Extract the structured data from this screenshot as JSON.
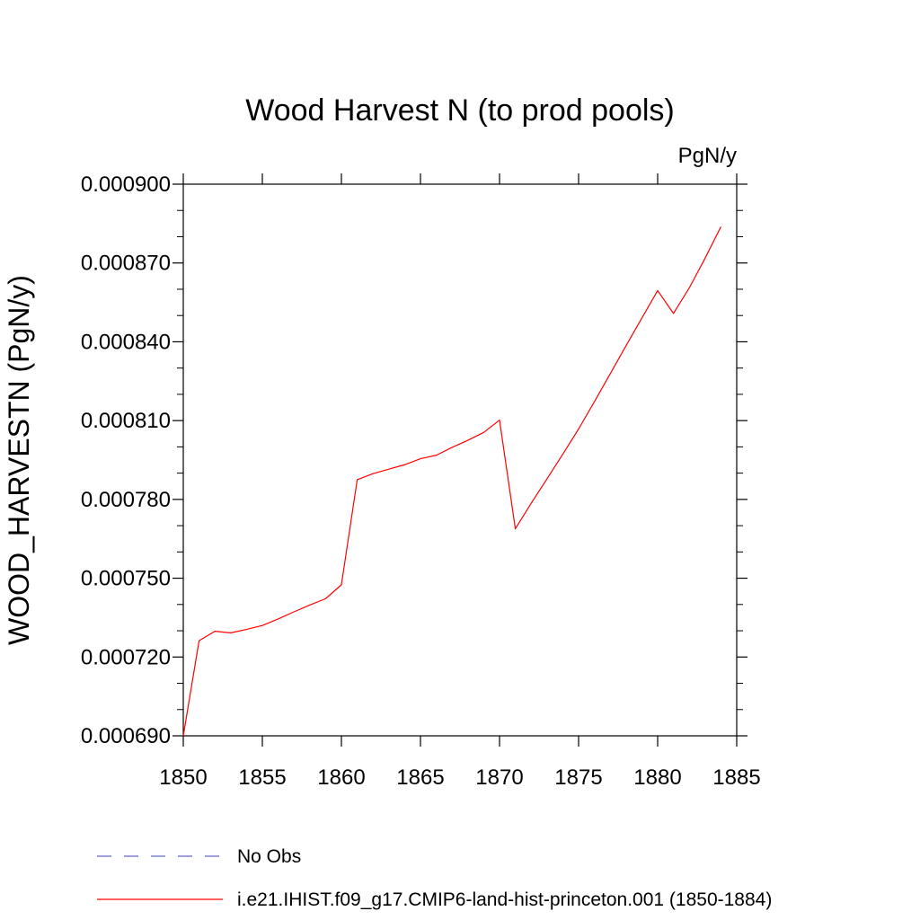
{
  "chart_data": {
    "type": "line",
    "title": "Wood Harvest N (to prod pools)",
    "units_label": "PgN/y",
    "ylabel": "WOOD_HARVESTN  (PgN/y)",
    "xlabel": "",
    "xlim": [
      1850,
      1885
    ],
    "ylim": [
      0.00069,
      0.0009
    ],
    "xticks": [
      "1850",
      "1855",
      "1860",
      "1865",
      "1870",
      "1875",
      "1880",
      "1885"
    ],
    "yticks": [
      "0.000690",
      "0.000720",
      "0.000750",
      "0.000780",
      "0.000810",
      "0.000840",
      "0.000870",
      "0.000900"
    ],
    "grid": false,
    "legend_position": "bottom",
    "series": [
      {
        "name": "i.e21.IHIST.f09_g17.CMIP6-land-hist-princeton.001 (1850-1884)",
        "color": "#ff0000",
        "style": "solid",
        "x": [
          1850,
          1851,
          1852,
          1853,
          1854,
          1855,
          1856,
          1857,
          1858,
          1859,
          1860,
          1861,
          1862,
          1863,
          1864,
          1865,
          1866,
          1867,
          1868,
          1869,
          1870,
          1871,
          1872,
          1873,
          1874,
          1875,
          1876,
          1877,
          1878,
          1879,
          1880,
          1881,
          1882,
          1883,
          1884
        ],
        "values": [
          0.00069,
          0.0007262,
          0.0007298,
          0.0007292,
          0.0007305,
          0.000732,
          0.0007345,
          0.0007372,
          0.0007398,
          0.0007422,
          0.0007475,
          0.0007875,
          0.0007898,
          0.0007915,
          0.0007932,
          0.0007955,
          0.0007968,
          0.0007998,
          0.0008025,
          0.0008055,
          0.0008102,
          0.0007688,
          0.0007785,
          0.0007878,
          0.0007972,
          0.0008068,
          0.0008172,
          0.0008278,
          0.0008385,
          0.000849,
          0.0008595,
          0.0008508,
          0.0008605,
          0.0008718,
          0.0008838
        ]
      }
    ],
    "legend": [
      {
        "label": "No Obs",
        "color": "#6666cc",
        "style": "dashed"
      },
      {
        "label": "i.e21.IHIST.f09_g17.CMIP6-land-hist-princeton.001 (1850-1884)",
        "color": "#ff0000",
        "style": "solid"
      }
    ]
  }
}
